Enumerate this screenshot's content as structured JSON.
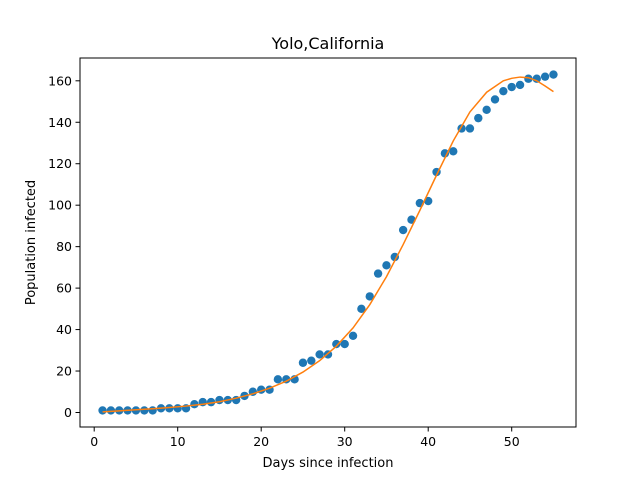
{
  "chart_data": {
    "type": "scatter",
    "title": "Yolo,California",
    "xlabel": "Days since infection",
    "ylabel": "Population infected",
    "xlim": [
      -1.7,
      57.7
    ],
    "ylim": [
      -7,
      171
    ],
    "xticks": [
      0,
      10,
      20,
      30,
      40,
      50
    ],
    "yticks": [
      0,
      20,
      40,
      60,
      80,
      100,
      120,
      140,
      160
    ],
    "grid": false,
    "legend": "none",
    "series": [
      {
        "kind": "scatter",
        "color": "#1f77b4",
        "x": [
          1,
          2,
          3,
          4,
          5,
          6,
          7,
          8,
          9,
          10,
          11,
          12,
          13,
          14,
          15,
          16,
          17,
          18,
          19,
          20,
          21,
          22,
          23,
          24,
          25,
          26,
          27,
          28,
          29,
          30,
          31,
          32,
          33,
          34,
          35,
          36,
          37,
          38,
          39,
          40,
          41,
          42,
          43,
          44,
          45,
          46,
          47,
          48,
          49,
          50,
          51,
          52,
          53,
          54,
          55
        ],
        "y": [
          1,
          1,
          1,
          1,
          1,
          1,
          1,
          2,
          2,
          2,
          2,
          4,
          5,
          5,
          6,
          6,
          6,
          8,
          10,
          11,
          11,
          16,
          16,
          16,
          24,
          25,
          28,
          28,
          33,
          33,
          37,
          50,
          56,
          67,
          71,
          75,
          88,
          93,
          101,
          102,
          116,
          125,
          126,
          137,
          137,
          142,
          146,
          151,
          155,
          157,
          158,
          161,
          161,
          162,
          163
        ]
      },
      {
        "kind": "line",
        "color": "#ff7f0e",
        "x": [
          1,
          3,
          5,
          7,
          9,
          11,
          13,
          15,
          17,
          19,
          21,
          23,
          25,
          27,
          29,
          31,
          33,
          35,
          37,
          39,
          41,
          43,
          45,
          47,
          49,
          50,
          51,
          52,
          53,
          54,
          55
        ],
        "y": [
          0.3,
          0.8,
          1.3,
          1.8,
          2.4,
          3.1,
          4.0,
          5.2,
          6.9,
          9.0,
          11.7,
          15.1,
          19.5,
          25.0,
          32.0,
          40.8,
          52.0,
          65.5,
          81.0,
          97.5,
          114.5,
          131.0,
          145.0,
          154.5,
          160.0,
          161.2,
          161.8,
          161.5,
          160.0,
          157.5,
          154.8
        ]
      }
    ]
  }
}
